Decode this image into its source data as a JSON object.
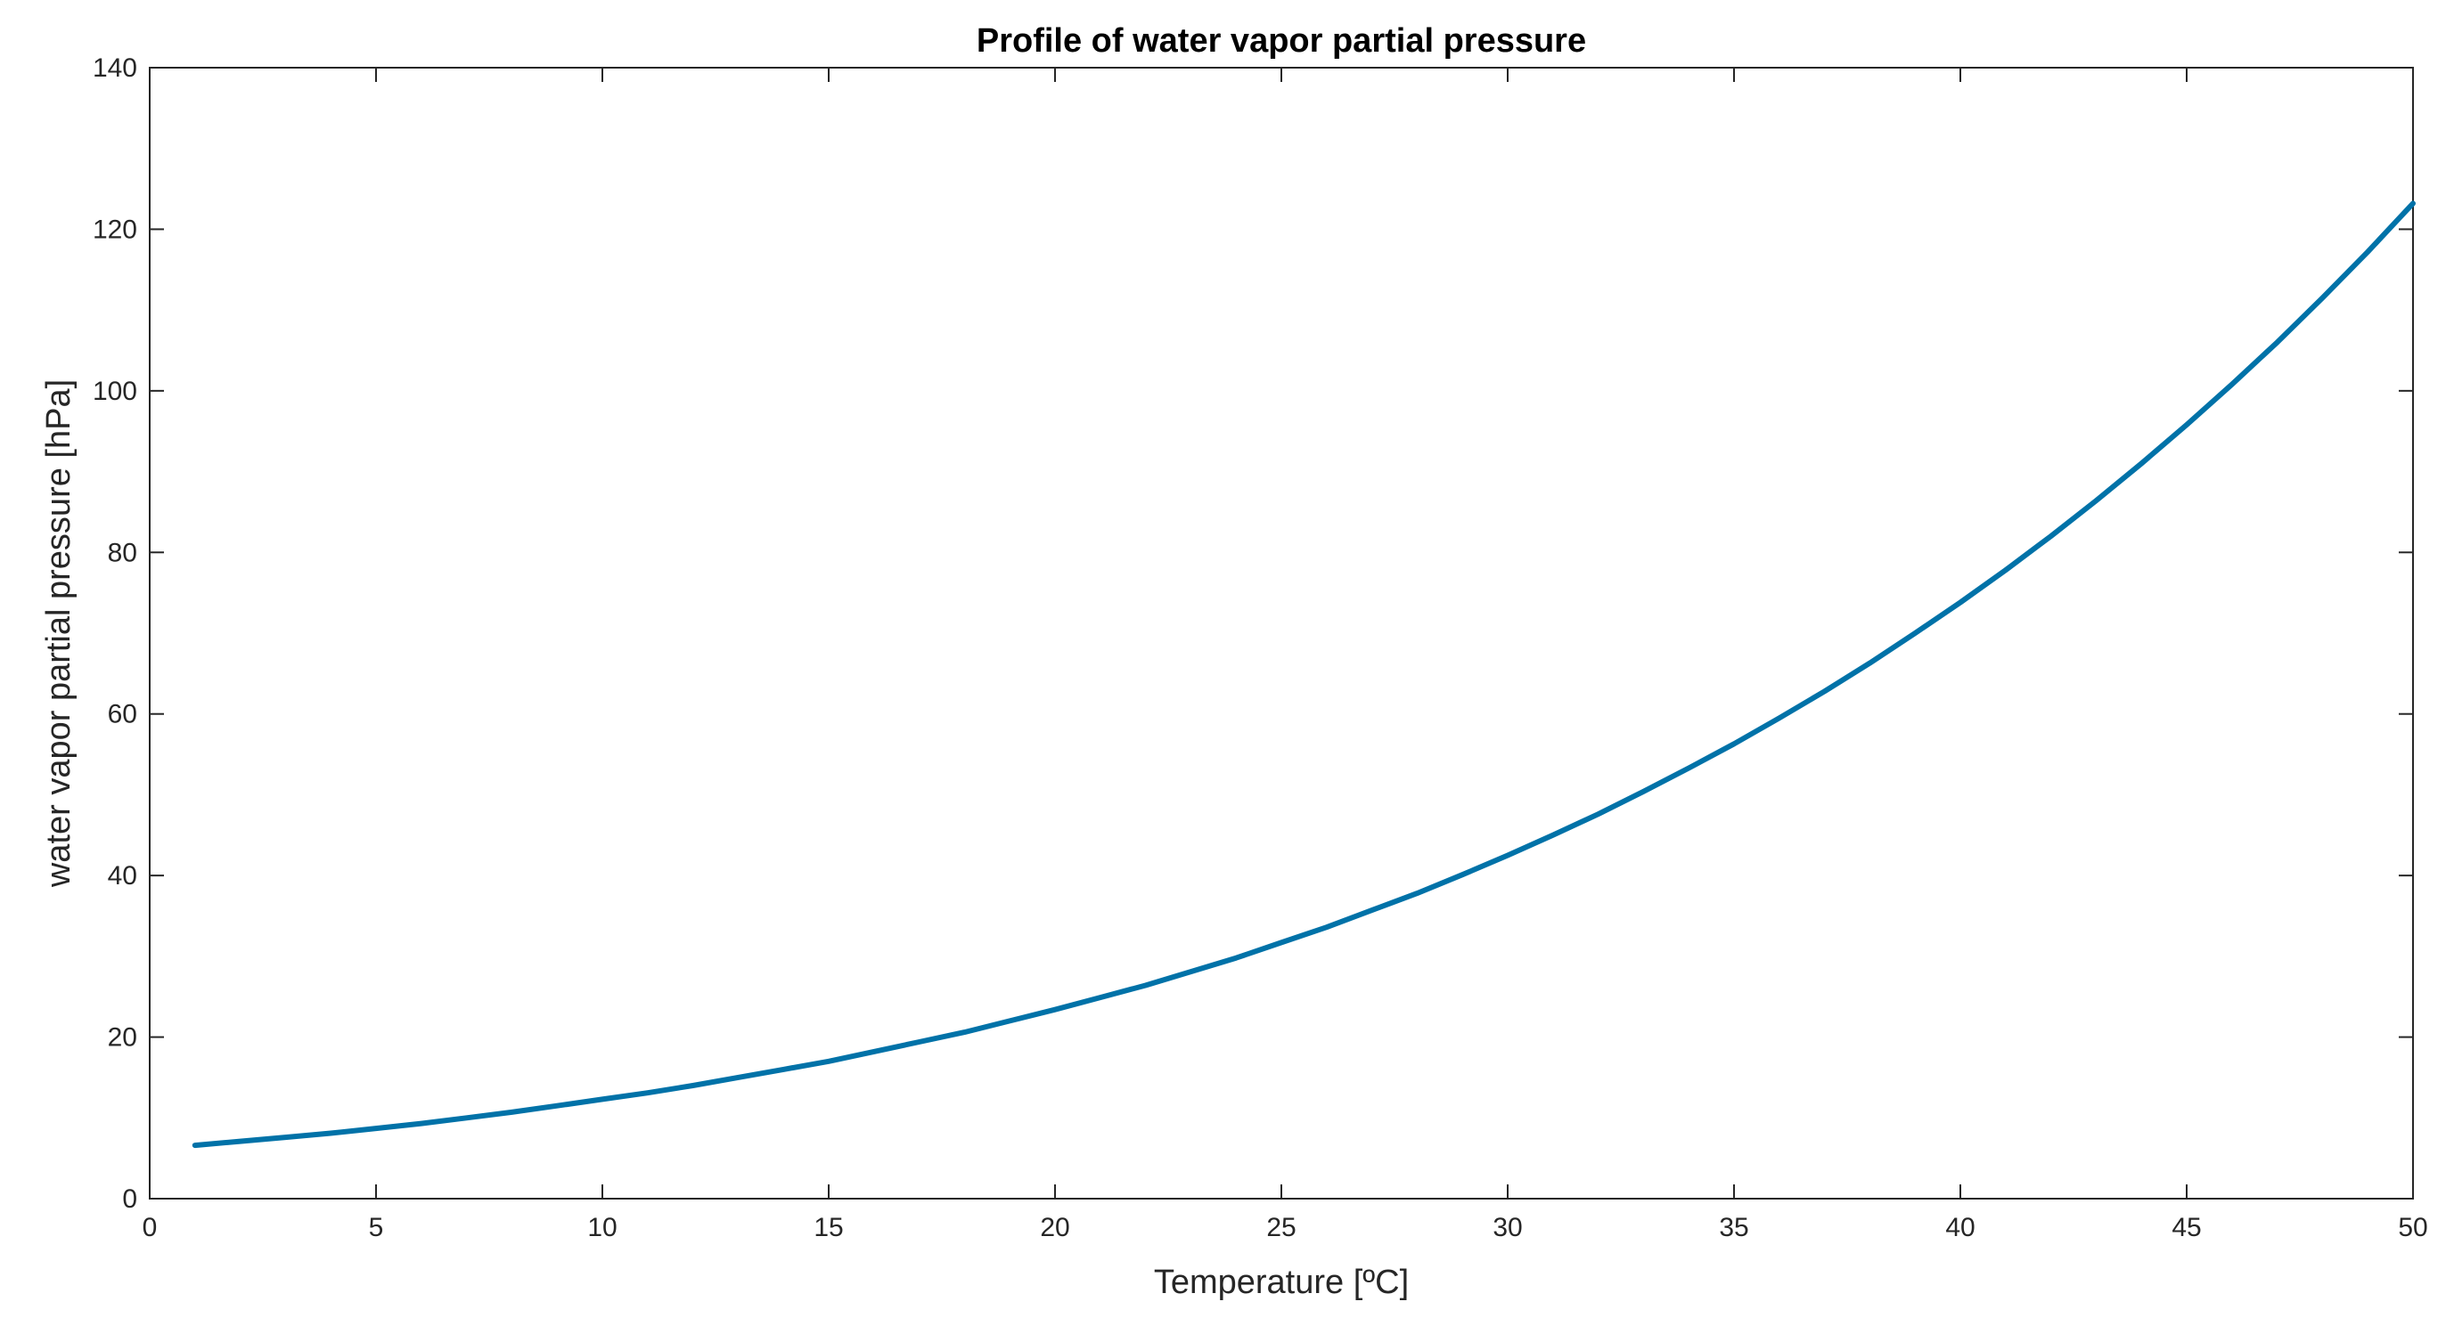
{
  "chart_data": {
    "type": "line",
    "title": "Profile of water vapor partial pressure",
    "xlabel": "Temperature [ºC]",
    "ylabel": "water vapor partial pressure [hPa]",
    "xlim": [
      0,
      50
    ],
    "ylim": [
      0,
      140
    ],
    "xticks": [
      0,
      5,
      10,
      15,
      20,
      25,
      30,
      35,
      40,
      45,
      50
    ],
    "yticks": [
      0,
      20,
      40,
      60,
      80,
      100,
      120,
      140
    ],
    "grid": false,
    "series": [
      {
        "name": "water vapor partial pressure",
        "color": "#0072a8",
        "x": [
          1,
          2,
          3,
          4,
          5,
          6,
          7,
          8,
          9,
          10,
          11,
          12,
          13,
          14,
          15,
          16,
          17,
          18,
          19,
          20,
          21,
          22,
          23,
          24,
          25,
          26,
          27,
          28,
          29,
          30,
          31,
          32,
          33,
          34,
          35,
          36,
          37,
          38,
          39,
          40,
          41,
          42,
          43,
          44,
          45,
          46,
          47,
          48,
          49,
          50
        ],
        "y": [
          6.6,
          7.1,
          7.6,
          8.1,
          8.7,
          9.3,
          10.0,
          10.7,
          11.5,
          12.3,
          13.1,
          14.0,
          15.0,
          16.0,
          17.0,
          18.2,
          19.4,
          20.6,
          22.0,
          23.4,
          24.9,
          26.4,
          28.1,
          29.8,
          31.7,
          33.6,
          35.7,
          37.8,
          40.1,
          42.5,
          45.0,
          47.6,
          50.4,
          53.3,
          56.3,
          59.5,
          62.8,
          66.3,
          70.0,
          73.8,
          77.8,
          82.0,
          86.4,
          91.0,
          95.8,
          100.8,
          106.0,
          111.5,
          117.2,
          123.2
        ]
      }
    ]
  }
}
